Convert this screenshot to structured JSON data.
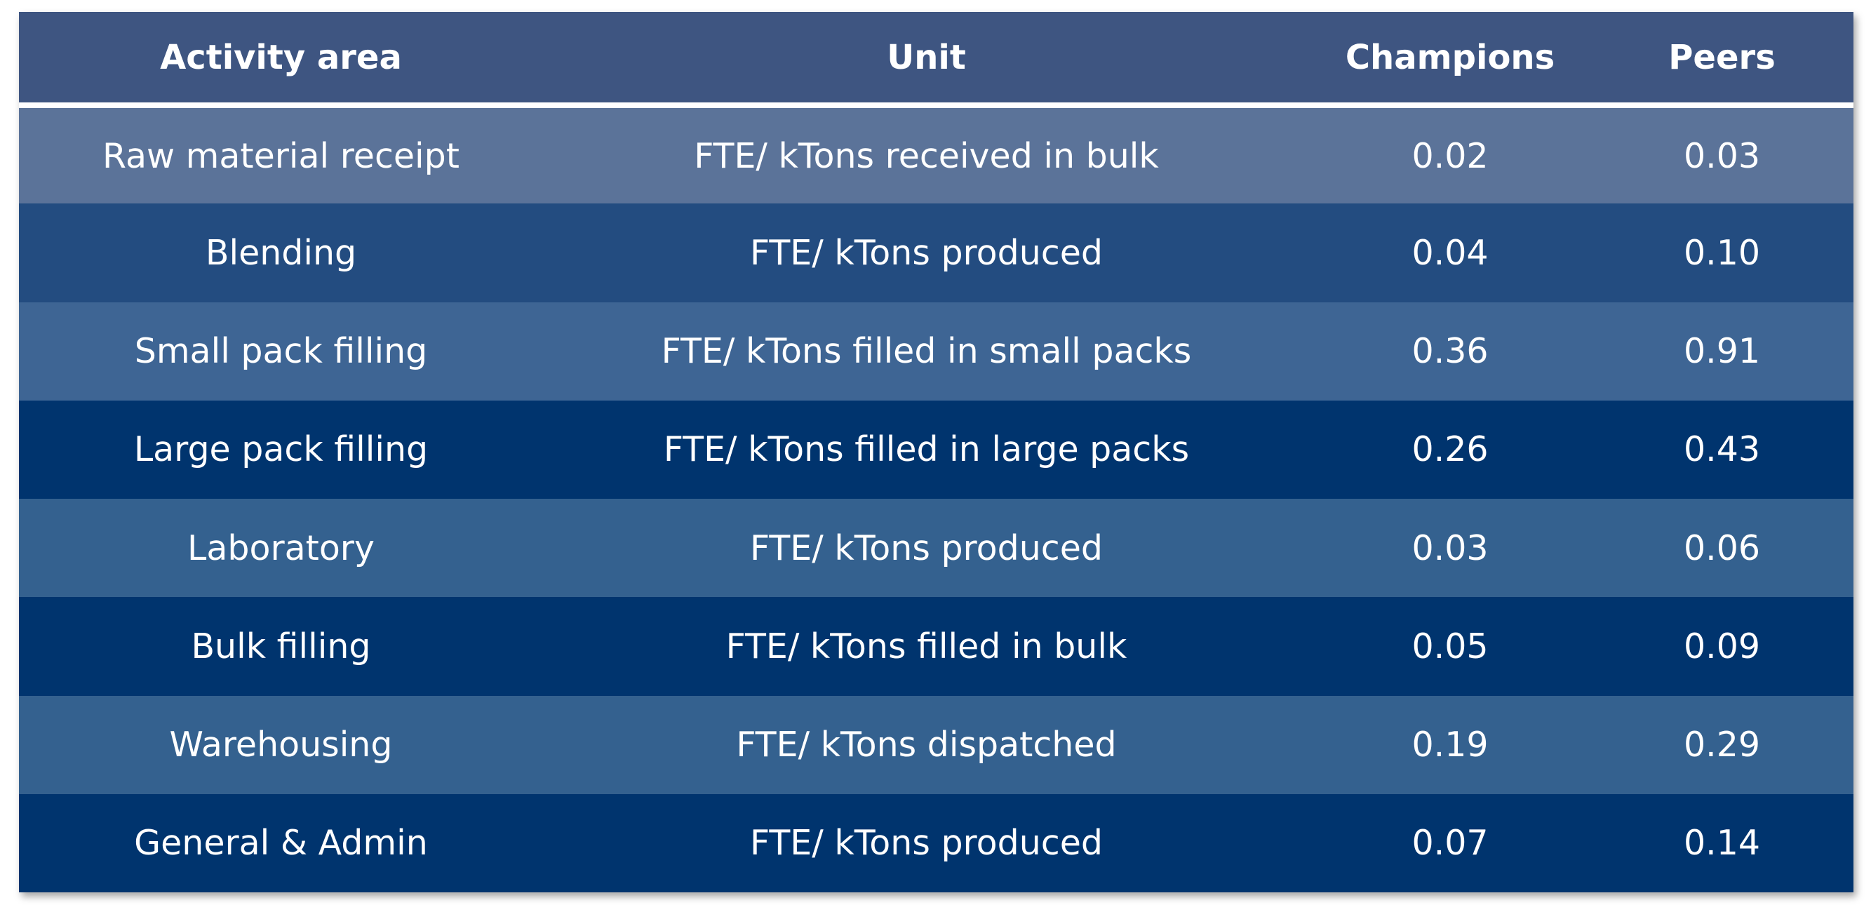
{
  "chart_data": {
    "type": "table",
    "columns": [
      "Activity area",
      "Unit",
      "Champions",
      "Peers"
    ],
    "rows": [
      {
        "activity": "Raw material receipt",
        "unit": "FTE/ kTons received in bulk",
        "champions": "0.02",
        "peers": "0.03"
      },
      {
        "activity": "Blending",
        "unit": "FTE/ kTons produced",
        "champions": "0.04",
        "peers": "0.10"
      },
      {
        "activity": "Small pack filling",
        "unit": "FTE/ kTons filled in small packs",
        "champions": "0.36",
        "peers": "0.91"
      },
      {
        "activity": "Large pack filling",
        "unit": "FTE/ kTons filled in large packs",
        "champions": "0.26",
        "peers": "0.43"
      },
      {
        "activity": "Laboratory",
        "unit": "FTE/ kTons produced",
        "champions": "0.03",
        "peers": "0.06"
      },
      {
        "activity": "Bulk filling",
        "unit": "FTE/ kTons filled in bulk",
        "champions": "0.05",
        "peers": "0.09"
      },
      {
        "activity": "Warehousing",
        "unit": "FTE/ kTons dispatched",
        "champions": "0.19",
        "peers": "0.29"
      },
      {
        "activity": "General & Admin",
        "unit": "FTE/ kTons produced",
        "champions": "0.07",
        "peers": "0.14"
      }
    ]
  },
  "colors": {
    "header": "#3e5581",
    "row_colors": [
      "#5b7399",
      "#234c80",
      "#3e6594",
      "#00346e",
      "#34618f",
      "#00346e",
      "#34618f",
      "#00346e"
    ],
    "text": "#ffffff",
    "divider": "#ffffff"
  }
}
